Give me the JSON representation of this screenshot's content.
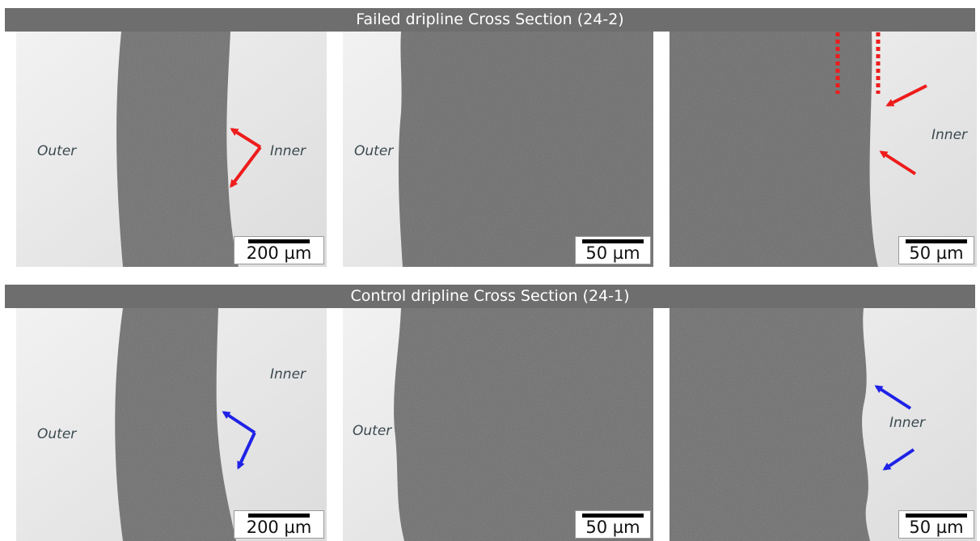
{
  "figure": {
    "top_banner": "Failed dripline Cross Section (24-2)",
    "bottom_banner": "Control dripline Cross Section (24-1)",
    "label_outer": "Outer",
    "label_inner": "Inner",
    "scale_200": "200 µm",
    "scale_50": "50 µm",
    "colors": {
      "banner": "#6e6e6e",
      "failed_arrow": "#ee1c1c",
      "control_arrow": "#1f22e6",
      "tissue": "#8c8c8c",
      "background_light": "#e4e4e4"
    }
  }
}
